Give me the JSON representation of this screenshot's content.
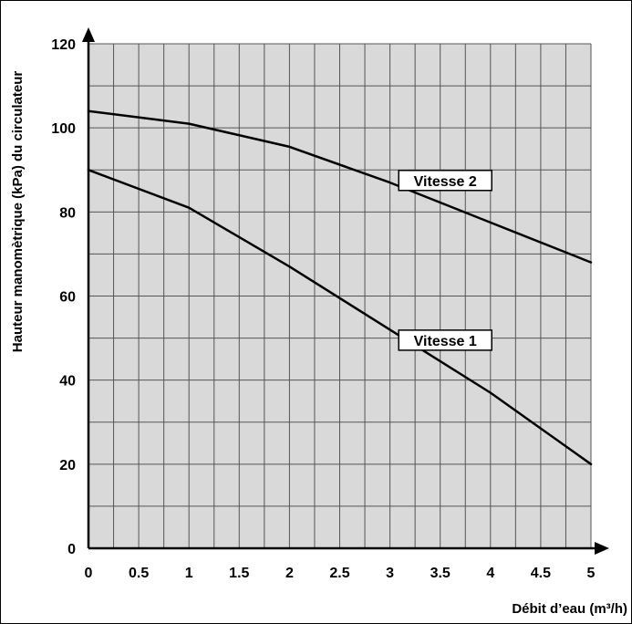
{
  "chart_data": {
    "type": "line",
    "xlabel": "Débit d’eau (m³/h)",
    "ylabel": "Hauteur manomètrique (kPa)  du circulateur",
    "xlim": [
      0,
      5
    ],
    "ylim": [
      0,
      120
    ],
    "x_ticks": [
      "0",
      "0.5",
      "1",
      "1.5",
      "2",
      "2.5",
      "3",
      "3.5",
      "4",
      "4.5",
      "5"
    ],
    "y_ticks": [
      "0",
      "20",
      "40",
      "60",
      "80",
      "100",
      "120"
    ],
    "grid": true,
    "series": [
      {
        "name": "Vitesse 2",
        "x": [
          0,
          1,
          2,
          3,
          4,
          5
        ],
        "y": [
          104,
          101,
          95.5,
          87,
          77.5,
          68
        ]
      },
      {
        "name": "Vitesse 1",
        "x": [
          0,
          1,
          2,
          3,
          4,
          5
        ],
        "y": [
          90,
          81,
          67,
          52,
          37,
          20
        ]
      }
    ]
  }
}
